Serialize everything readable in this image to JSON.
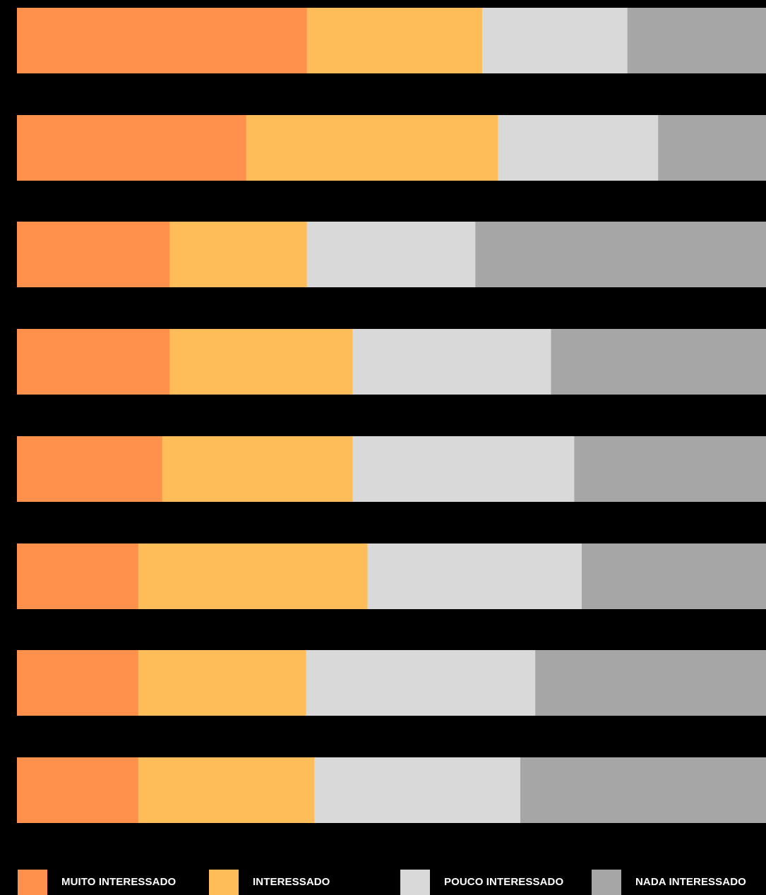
{
  "chart_data": {
    "type": "bar",
    "orientation": "horizontal",
    "stacked": true,
    "normalized_to": 100,
    "unit": "%",
    "categories": [
      "",
      "",
      "",
      "",
      "",
      "",
      "",
      ""
    ],
    "series": [
      {
        "name": "MUITO INTERESSADO",
        "color": "#FF914D",
        "values": [
          38.7,
          30.6,
          20.4,
          20.4,
          19.4,
          16.2,
          16.2,
          16.2
        ]
      },
      {
        "name": "INTERESSADO",
        "color": "#FFBD59",
        "values": [
          23.4,
          33.6,
          18.3,
          24.4,
          25.4,
          30.6,
          22.4,
          23.5
        ]
      },
      {
        "name": "POUCO INTERESSADO",
        "color": "#D9D9D9",
        "values": [
          19.4,
          21.4,
          22.5,
          26.5,
          29.6,
          28.6,
          30.6,
          27.5
        ]
      },
      {
        "name": "NADA INTERESSADO",
        "color": "#A6A6A6",
        "values": [
          18.5,
          14.4,
          38.8,
          28.7,
          25.6,
          24.6,
          30.8,
          32.8
        ]
      }
    ],
    "xlim": [
      0,
      100
    ],
    "grid": false,
    "legend_position": "bottom",
    "background": "#000000"
  }
}
